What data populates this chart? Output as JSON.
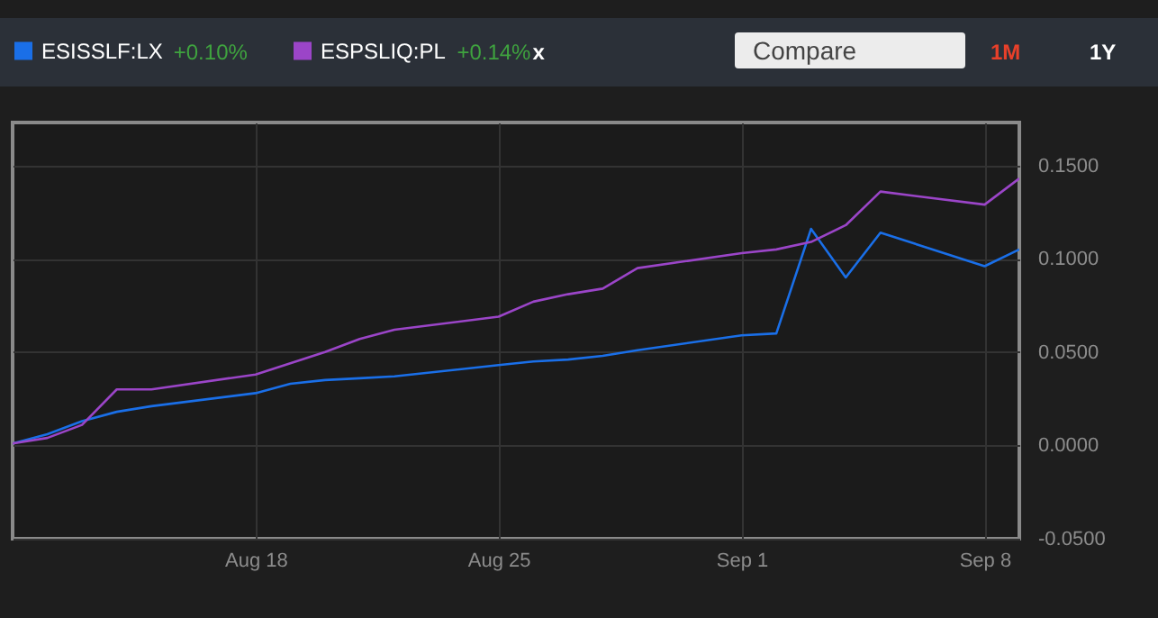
{
  "chart_data": {
    "type": "line",
    "x": [
      "--08-11",
      "--08-12",
      "--08-13",
      "--08-14",
      "--08-15",
      "--08-18",
      "--08-19",
      "--08-20",
      "--08-21",
      "--08-22",
      "--08-25",
      "--08-26",
      "--08-27",
      "--08-28",
      "--08-29",
      "--09-01",
      "--09-02",
      "--09-03",
      "--09-04",
      "--09-05",
      "--09-08",
      "--09-09"
    ],
    "series": [
      {
        "name": "ESISSLF:LX",
        "color": "#1a6fe8",
        "values": [
          0.001,
          0.006,
          0.013,
          0.018,
          0.021,
          0.028,
          0.033,
          0.035,
          0.036,
          0.037,
          0.043,
          0.045,
          0.046,
          0.048,
          0.051,
          0.059,
          0.06,
          0.116,
          0.09,
          0.114,
          0.096,
          0.105
        ]
      },
      {
        "name": "ESPSLIQ:PL",
        "color": "#9b45c8",
        "values": [
          0.001,
          0.004,
          0.011,
          0.03,
          0.03,
          0.038,
          0.044,
          0.05,
          0.057,
          0.062,
          0.069,
          0.077,
          0.081,
          0.084,
          0.095,
          0.103,
          0.105,
          0.109,
          0.118,
          0.136,
          0.129,
          0.143
        ]
      }
    ],
    "xlim": [
      "--08-11",
      "--09-09"
    ],
    "xticks": [
      {
        "value": "--08-18",
        "label": "Aug 18"
      },
      {
        "value": "--08-25",
        "label": "Aug 25"
      },
      {
        "value": "--09-01",
        "label": "Sep 1"
      },
      {
        "value": "--09-08",
        "label": "Sep 8"
      }
    ],
    "ylim": [
      -0.05,
      0.173
    ],
    "yticks": [
      {
        "value": -0.05,
        "label": "-0.0500"
      },
      {
        "value": 0,
        "label": "0.0000"
      },
      {
        "value": 0.05,
        "label": "0.0500"
      },
      {
        "value": 0.1,
        "label": "0.1000"
      },
      {
        "value": 0.15,
        "label": "0.1500"
      }
    ],
    "grid": true,
    "legend": "top left",
    "marker": "none",
    "line_style": "solid",
    "annotations": [
      "+0.10%",
      "+0.14%",
      "x",
      "Compare",
      "1M",
      "1Y"
    ]
  }
}
